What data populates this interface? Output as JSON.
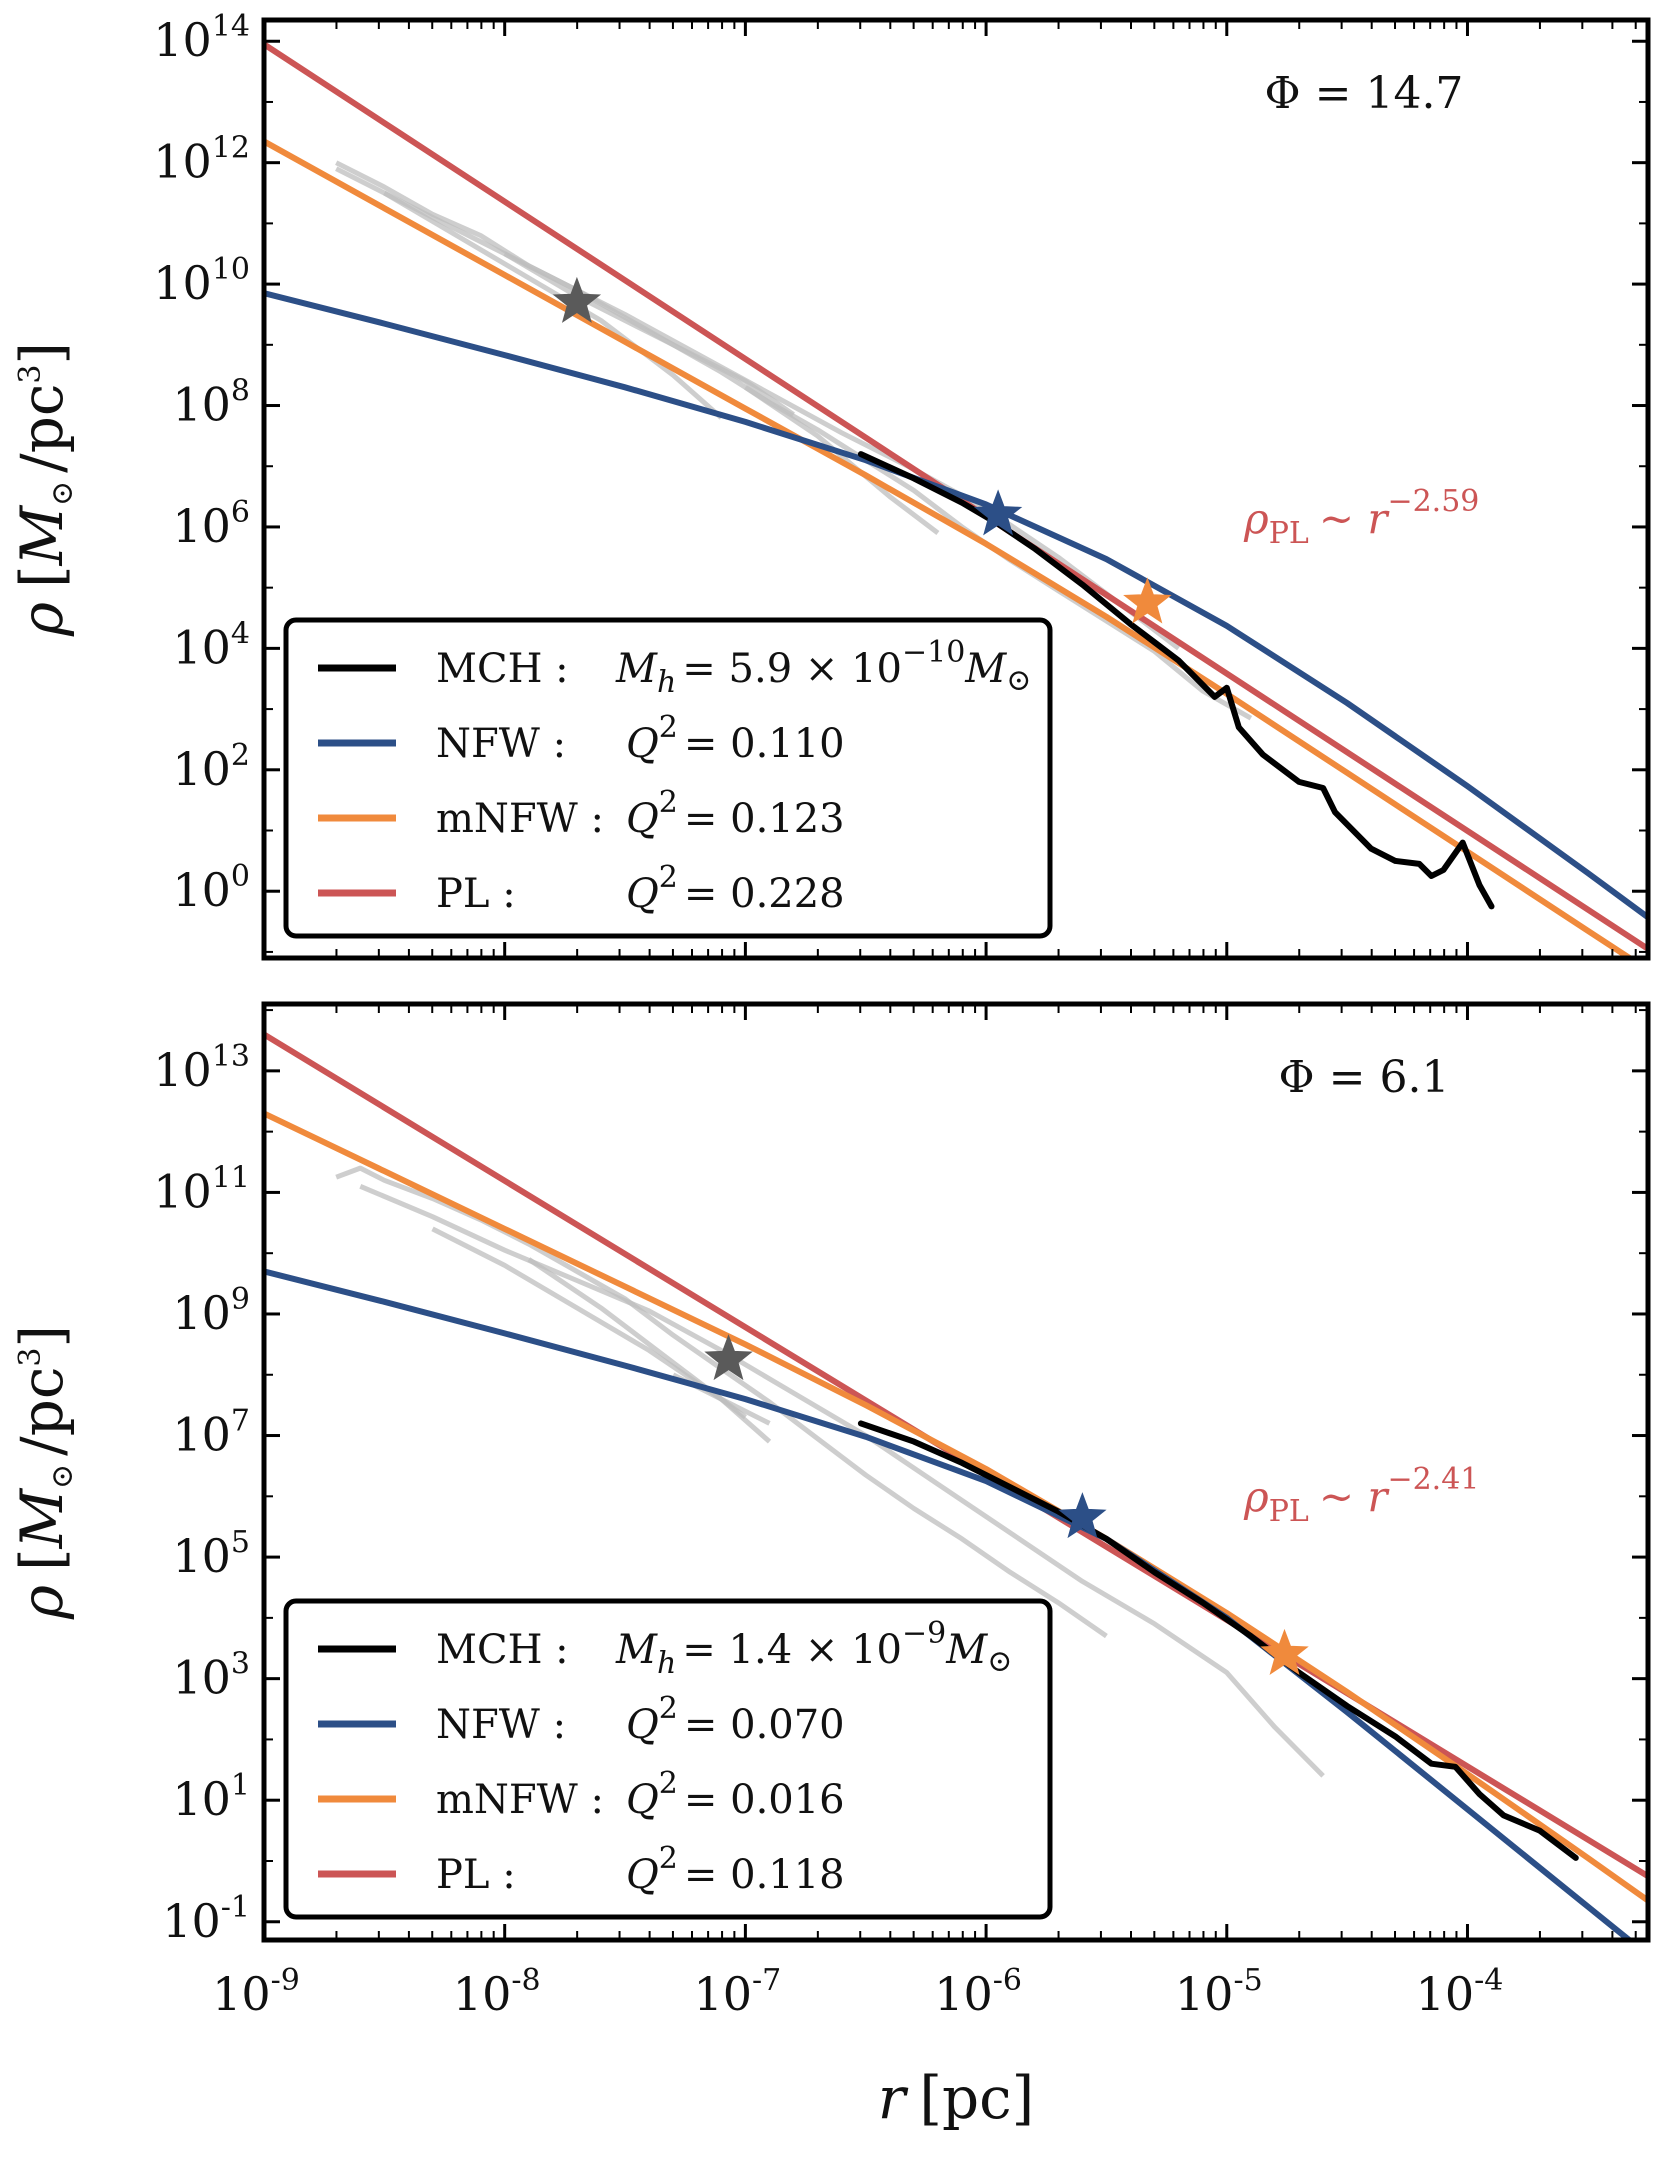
{
  "colors": {
    "MCH": "#000000",
    "NFW": "#2c4f87",
    "mNFW": "#f08a3c",
    "PL": "#cc5555",
    "sim": "#bdbdbd",
    "star_gray": "#5a5a5a"
  },
  "x_axis": {
    "label": "r [pc]",
    "label_var": "r",
    "label_unit": "[pc]",
    "tick_base": "10",
    "ticks": [
      {
        "exp": "-9"
      },
      {
        "exp": "-8"
      },
      {
        "exp": "-7"
      },
      {
        "exp": "-6"
      },
      {
        "exp": "-5"
      },
      {
        "exp": "-4"
      }
    ]
  },
  "chart_data": [
    {
      "type": "line",
      "title": "",
      "annotation": "Φ = 14.7",
      "pl_label": "ρ_PL ~ r^-2.59",
      "pl_label_parts": {
        "base": "ρ",
        "sub": "PL",
        "sim": "~ r",
        "exp": "−2.59"
      },
      "ylabel": "ρ [M⊙ /pc³]",
      "ylabel_parts": {
        "rho": "ρ",
        "open": "[",
        "M": "M",
        "odot": "⊙",
        "slash": "/pc",
        "cube": "3",
        "close": "]"
      },
      "xlim": [
        -9,
        -3.25
      ],
      "ylim": [
        -1.1,
        14.35
      ],
      "xscale": "log",
      "yscale": "log",
      "yticks": [
        {
          "value": 0,
          "label": "0"
        },
        {
          "value": 2,
          "label": "2"
        },
        {
          "value": 4,
          "label": "4"
        },
        {
          "value": 6,
          "label": "6"
        },
        {
          "value": 8,
          "label": "8"
        },
        {
          "value": 10,
          "label": "10"
        },
        {
          "value": 12,
          "label": "12"
        },
        {
          "value": 14,
          "label": "14"
        }
      ],
      "series": [
        {
          "name": "MCH",
          "log_x": [
            -6.52,
            -6.3,
            -6.1,
            -5.95,
            -5.8,
            -5.6,
            -5.4,
            -5.3,
            -5.2,
            -5.05,
            -5.0,
            -4.95,
            -4.85,
            -4.7,
            -4.6,
            -4.55,
            -4.4,
            -4.3,
            -4.2,
            -4.15,
            -4.1,
            -4.02,
            -3.95,
            -3.9
          ],
          "log_y": [
            7.2,
            6.8,
            6.4,
            6.05,
            5.65,
            5.05,
            4.4,
            4.1,
            3.8,
            3.2,
            3.35,
            2.7,
            2.25,
            1.8,
            1.7,
            1.3,
            0.7,
            0.5,
            0.45,
            0.25,
            0.35,
            0.8,
            0.1,
            -0.25
          ]
        },
        {
          "name": "NFW",
          "log_x": [
            -9,
            -8.5,
            -8,
            -7.5,
            -7,
            -6.5,
            -6,
            -5.5,
            -5,
            -4.5,
            -4,
            -3.5,
            -3.25
          ],
          "log_y": [
            9.85,
            9.35,
            8.83,
            8.3,
            7.73,
            7.1,
            6.37,
            5.47,
            4.37,
            3.1,
            1.73,
            0.3,
            -0.43
          ]
        },
        {
          "name": "mNFW",
          "log_x": [
            -9,
            -8.5,
            -8,
            -7.5,
            -7,
            -6.5,
            -6,
            -5.5,
            -5,
            -4.5,
            -4,
            -3.5,
            -3.25
          ],
          "log_y": [
            12.35,
            11.25,
            10.15,
            9.05,
            7.95,
            6.85,
            5.72,
            4.52,
            3.25,
            1.95,
            0.65,
            -0.65,
            -1.3
          ]
        },
        {
          "name": "PL",
          "log_x": [
            -9,
            -3.25
          ],
          "log_y": [
            13.95,
            -0.95
          ]
        }
      ],
      "sim_tracks": [
        {
          "log_x": [
            -8.7,
            -8.5,
            -8.3,
            -8.1,
            -7.9,
            -7.7,
            -7.5,
            -7.3,
            -7.1,
            -6.9,
            -6.7,
            -6.5,
            -6.3,
            -6.1,
            -5.9,
            -5.7,
            -5.5,
            -5.3,
            -5.1,
            -4.9
          ],
          "log_y": [
            12.0,
            11.6,
            11.15,
            10.8,
            10.3,
            9.9,
            9.45,
            9.0,
            8.55,
            8.05,
            7.6,
            7.1,
            6.6,
            6.0,
            5.45,
            4.95,
            4.45,
            3.95,
            3.3,
            2.85
          ]
        },
        {
          "log_x": [
            -8.7,
            -8.4,
            -8.1,
            -7.8,
            -7.5,
            -7.2,
            -6.9,
            -6.6,
            -6.3,
            -6.0,
            -5.7,
            -5.4,
            -5.2
          ],
          "log_y": [
            11.9,
            11.3,
            10.7,
            10.1,
            9.5,
            8.85,
            8.2,
            7.55,
            6.95,
            6.3,
            5.5,
            4.6,
            4.0
          ]
        },
        {
          "log_x": [
            -8.5,
            -8.2,
            -7.9,
            -7.6,
            -7.3,
            -7.1
          ],
          "log_y": [
            11.5,
            10.8,
            10.1,
            9.4,
            8.5,
            7.8
          ]
        },
        {
          "log_x": [
            -8.0,
            -7.7,
            -7.4,
            -7.0,
            -6.8
          ],
          "log_y": [
            10.5,
            9.8,
            9.2,
            8.4,
            7.85
          ]
        },
        {
          "log_x": [
            -7.0,
            -6.7,
            -6.4,
            -6.2
          ],
          "log_y": [
            8.3,
            7.5,
            6.5,
            5.9
          ]
        }
      ],
      "stars": [
        {
          "series": "sim",
          "log_x": -7.7,
          "log_y": 9.7,
          "color_key": "star_gray"
        },
        {
          "series": "NFW",
          "log_x": -5.95,
          "log_y": 6.2,
          "color_key": "NFW"
        },
        {
          "series": "mNFW",
          "log_x": -5.33,
          "log_y": 4.75,
          "color_key": "mNFW"
        }
      ],
      "legend": [
        {
          "key": "MCH",
          "name": "MCH :",
          "value": "M_h = 5.9 × 10^-10 M⊙",
          "parts": {
            "lhs": "M",
            "sub": "h",
            "eq": "= 5.9 × 10",
            "exp": "−10",
            "tail": "M",
            "odot": "⊙"
          }
        },
        {
          "key": "NFW",
          "name": "NFW :",
          "value": "Q² = 0.110",
          "parts": {
            "lhs": "Q",
            "exp": "2",
            "eq": "= 0.110"
          }
        },
        {
          "key": "mNFW",
          "name": "mNFW :",
          "value": "Q² = 0.123",
          "parts": {
            "lhs": "Q",
            "exp": "2",
            "eq": "= 0.123"
          }
        },
        {
          "key": "PL",
          "name": "PL :",
          "value": "Q² = 0.228",
          "parts": {
            "lhs": "Q",
            "exp": "2",
            "eq": "= 0.228"
          }
        }
      ]
    },
    {
      "type": "line",
      "title": "",
      "annotation": "Φ = 6.1",
      "pl_label": "ρ_PL ~ r^-2.41",
      "pl_label_parts": {
        "base": "ρ",
        "sub": "PL",
        "sim": "~ r",
        "exp": "−2.41"
      },
      "ylabel": "ρ [M⊙ /pc³]",
      "ylabel_parts": {
        "rho": "ρ",
        "open": "[",
        "M": "M",
        "odot": "⊙",
        "slash": "/pc",
        "cube": "3",
        "close": "]"
      },
      "xlim": [
        -9,
        -3.25
      ],
      "ylim": [
        -1.3,
        14.1
      ],
      "xscale": "log",
      "yscale": "log",
      "yticks": [
        {
          "value": -1,
          "label": "-1"
        },
        {
          "value": 1,
          "label": "1"
        },
        {
          "value": 3,
          "label": "3"
        },
        {
          "value": 5,
          "label": "5"
        },
        {
          "value": 7,
          "label": "7"
        },
        {
          "value": 9,
          "label": "9"
        },
        {
          "value": 11,
          "label": "11"
        },
        {
          "value": 13,
          "label": "13"
        }
      ],
      "series": [
        {
          "name": "MCH",
          "log_x": [
            -6.52,
            -6.3,
            -6.1,
            -5.9,
            -5.7,
            -5.5,
            -5.3,
            -5.1,
            -4.9,
            -4.7,
            -4.5,
            -4.3,
            -4.15,
            -4.05,
            -3.95,
            -3.85,
            -3.7,
            -3.55
          ],
          "log_y": [
            7.2,
            6.9,
            6.55,
            6.15,
            5.75,
            5.3,
            4.75,
            4.25,
            3.7,
            3.1,
            2.55,
            2.05,
            1.6,
            1.55,
            1.1,
            0.75,
            0.5,
            0.05
          ]
        },
        {
          "name": "NFW",
          "log_x": [
            -9,
            -8.5,
            -8,
            -7.5,
            -7,
            -6.5,
            -6,
            -5.5,
            -5,
            -4.5,
            -4,
            -3.5,
            -3.25
          ],
          "log_y": [
            9.7,
            9.2,
            8.68,
            8.15,
            7.6,
            6.98,
            6.25,
            5.3,
            4.0,
            2.45,
            0.85,
            -0.75,
            -1.55
          ]
        },
        {
          "name": "mNFW",
          "log_x": [
            -9,
            -8.5,
            -8,
            -7.5,
            -7,
            -6.5,
            -6,
            -5.5,
            -5,
            -4.5,
            -4,
            -3.5,
            -3.25
          ],
          "log_y": [
            12.3,
            11.35,
            10.4,
            9.45,
            8.5,
            7.5,
            6.45,
            5.3,
            4.08,
            2.78,
            1.43,
            0.05,
            -0.65
          ]
        },
        {
          "name": "PL",
          "log_x": [
            -9,
            -3.25
          ],
          "log_y": [
            13.6,
            -0.25
          ]
        }
      ],
      "sim_tracks": [
        {
          "log_x": [
            -8.7,
            -8.6,
            -8.5,
            -8.3,
            -8.1,
            -7.9,
            -7.7,
            -7.5,
            -7.3,
            -7.1,
            -6.9,
            -6.7,
            -6.5,
            -6.3,
            -6.1,
            -5.9,
            -5.7,
            -5.5
          ],
          "log_y": [
            11.25,
            11.4,
            11.2,
            10.9,
            10.55,
            10.15,
            9.7,
            9.25,
            8.65,
            8.1,
            7.55,
            6.95,
            6.35,
            5.8,
            5.3,
            4.75,
            4.25,
            3.7
          ]
        },
        {
          "log_x": [
            -8.6,
            -8.3,
            -8.0,
            -7.7,
            -7.4,
            -7.1,
            -6.8,
            -6.5,
            -6.2,
            -5.9,
            -5.6,
            -5.3,
            -5.0,
            -4.8,
            -4.6
          ],
          "log_y": [
            11.1,
            10.6,
            10.05,
            9.55,
            9.05,
            8.4,
            7.7,
            7.0,
            6.2,
            5.4,
            4.6,
            3.9,
            3.1,
            2.2,
            1.4
          ]
        },
        {
          "log_x": [
            -8.3,
            -8.0,
            -7.7,
            -7.4,
            -7.1,
            -6.9
          ],
          "log_y": [
            10.4,
            9.8,
            9.1,
            8.4,
            7.6,
            6.9
          ]
        },
        {
          "log_x": [
            -7.9,
            -7.6,
            -7.3,
            -7.0
          ],
          "log_y": [
            9.9,
            9.1,
            8.2,
            7.3
          ]
        },
        {
          "log_x": [
            -7.3,
            -7.1,
            -6.9
          ],
          "log_y": [
            8.0,
            7.6,
            7.2
          ]
        }
      ],
      "stars": [
        {
          "series": "sim",
          "log_x": -7.07,
          "log_y": 8.25,
          "color_key": "star_gray"
        },
        {
          "series": "NFW",
          "log_x": -5.6,
          "log_y": 5.65,
          "color_key": "NFW"
        },
        {
          "series": "mNFW",
          "log_x": -4.76,
          "log_y": 3.4,
          "color_key": "mNFW"
        }
      ],
      "legend": [
        {
          "key": "MCH",
          "name": "MCH :",
          "value": "M_h = 1.4 × 10^-9 M⊙",
          "parts": {
            "lhs": "M",
            "sub": "h",
            "eq": "= 1.4 × 10",
            "exp": "−9",
            "tail": "M",
            "odot": "⊙"
          }
        },
        {
          "key": "NFW",
          "name": "NFW :",
          "value": "Q² = 0.070",
          "parts": {
            "lhs": "Q",
            "exp": "2",
            "eq": "= 0.070"
          }
        },
        {
          "key": "mNFW",
          "name": "mNFW :",
          "value": "Q² = 0.016",
          "parts": {
            "lhs": "Q",
            "exp": "2",
            "eq": "= 0.016"
          }
        },
        {
          "key": "PL",
          "name": "PL :",
          "value": "Q² = 0.118",
          "parts": {
            "lhs": "Q",
            "exp": "2",
            "eq": "= 0.118"
          }
        }
      ]
    }
  ]
}
